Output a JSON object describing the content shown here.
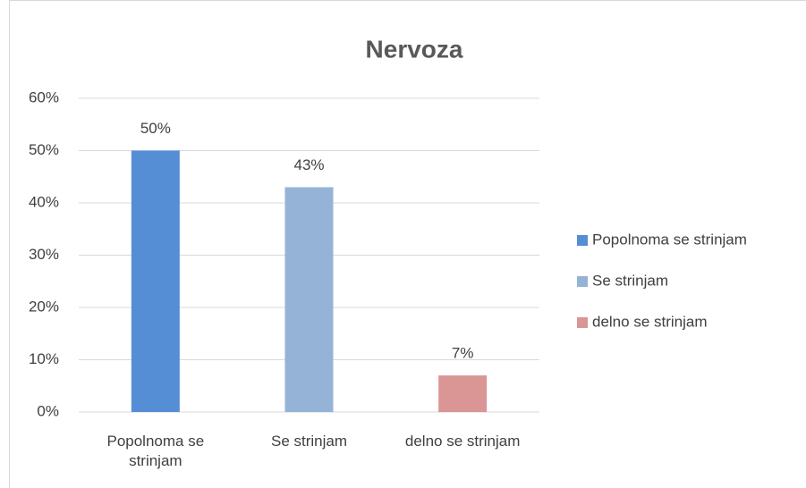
{
  "chart_data": {
    "type": "bar",
    "title": "Nervoza",
    "categories": [
      "Popolnoma se strinjam",
      "Se strinjam",
      "delno se strinjam"
    ],
    "values": [
      50,
      43,
      7
    ],
    "value_labels": [
      "50%",
      "43%",
      "7%"
    ],
    "colors": [
      "#558ed5",
      "#95b3d7",
      "#d99694"
    ],
    "ylim": [
      0,
      60
    ],
    "yticks": [
      {
        "value": 0,
        "label": "0%"
      },
      {
        "value": 10,
        "label": "10%"
      },
      {
        "value": 20,
        "label": "20%"
      },
      {
        "value": 30,
        "label": "30%"
      },
      {
        "value": 40,
        "label": "40%"
      },
      {
        "value": 50,
        "label": "50%"
      },
      {
        "value": 60,
        "label": "60%"
      }
    ],
    "grid": true,
    "legend": "right"
  }
}
